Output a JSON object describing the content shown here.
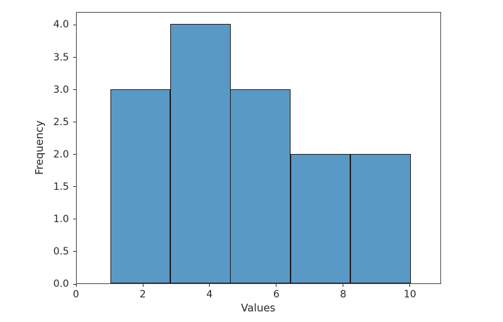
{
  "chart_data": {
    "type": "bar",
    "subtype": "histogram",
    "title": "",
    "xlabel": "Values",
    "ylabel": "Frequency",
    "bin_edges": [
      1.0,
      2.8,
      4.6,
      6.4,
      8.2,
      10.0
    ],
    "values": [
      3,
      4,
      3,
      2,
      2
    ],
    "xlim": [
      0,
      10.93
    ],
    "ylim": [
      0,
      4.2
    ],
    "x_ticks": [
      {
        "v": 0,
        "label": "0"
      },
      {
        "v": 2,
        "label": "2"
      },
      {
        "v": 4,
        "label": "4"
      },
      {
        "v": 6,
        "label": "6"
      },
      {
        "v": 8,
        "label": "8"
      },
      {
        "v": 10,
        "label": "10"
      }
    ],
    "y_ticks": [
      {
        "v": 0.0,
        "label": "0.0"
      },
      {
        "v": 0.5,
        "label": "0.5"
      },
      {
        "v": 1.0,
        "label": "1.0"
      },
      {
        "v": 1.5,
        "label": "1.5"
      },
      {
        "v": 2.0,
        "label": "2.0"
      },
      {
        "v": 2.5,
        "label": "2.5"
      },
      {
        "v": 3.0,
        "label": "3.0"
      },
      {
        "v": 3.5,
        "label": "3.5"
      },
      {
        "v": 4.0,
        "label": "4.0"
      }
    ],
    "bar_color": "#5a99c6",
    "bar_edge_color": "#1f1f1f",
    "spine_color": "#4a4a4a",
    "grid": false,
    "legend": null
  }
}
